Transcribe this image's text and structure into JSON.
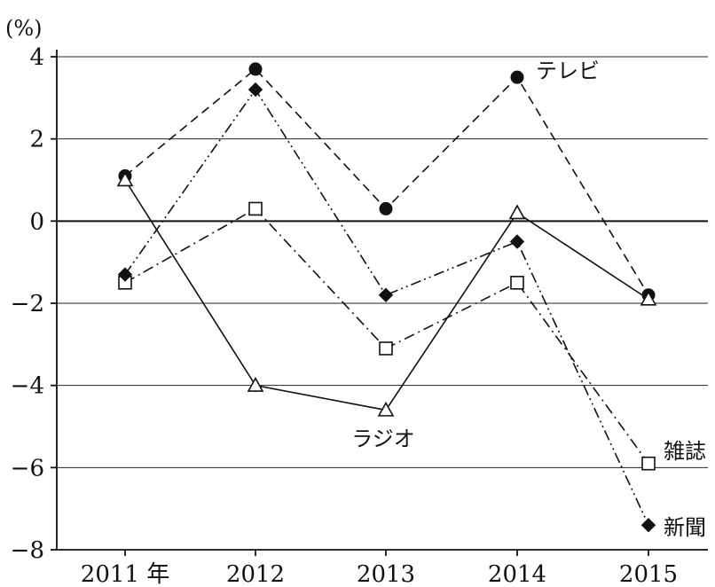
{
  "chart_data": {
    "type": "line",
    "y_unit": "(%)",
    "categories": [
      "2011 年",
      "2012",
      "2013",
      "2014",
      "2015"
    ],
    "ylim": [
      -8,
      4
    ],
    "yticks": [
      4,
      2,
      0,
      -2,
      -4,
      -6,
      -8
    ],
    "ytick_labels": [
      "4",
      "2",
      "0",
      "−2",
      "−4",
      "−6",
      "−8"
    ],
    "grid": true,
    "series": [
      {
        "name": "テレビ",
        "values": [
          1.1,
          3.7,
          0.3,
          3.5,
          -1.8
        ],
        "marker": "filled-circle",
        "line": "dashed"
      },
      {
        "name": "ラジオ",
        "values": [
          1.0,
          -4.0,
          -4.6,
          0.2,
          -1.9
        ],
        "marker": "open-triangle",
        "line": "solid"
      },
      {
        "name": "雑誌",
        "values": [
          -1.5,
          0.3,
          -3.1,
          -1.5,
          -5.9
        ],
        "marker": "open-square",
        "line": "dash-dot"
      },
      {
        "name": "新聞",
        "values": [
          -1.3,
          3.2,
          -1.8,
          -0.5,
          -7.4
        ],
        "marker": "filled-diamond",
        "line": "dash-dot-dot"
      }
    ]
  }
}
